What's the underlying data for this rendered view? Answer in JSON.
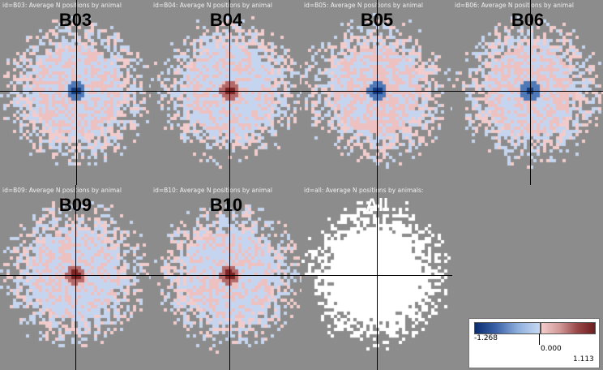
{
  "panels": [
    {
      "id": "B03",
      "caption": "id=B03: Average N positions by animal",
      "title": "B03",
      "pattern": "blue-center"
    },
    {
      "id": "B04",
      "caption": "id=B04: Average N positions by animal",
      "title": "B04",
      "pattern": "red-center"
    },
    {
      "id": "B05",
      "caption": "id=B05: Average N positions by animal",
      "title": "B05",
      "pattern": "blue-center"
    },
    {
      "id": "B06",
      "caption": "id=B06: Average N positions by animal",
      "title": "B06",
      "pattern": "blue-center"
    },
    {
      "id": "B09",
      "caption": "id=B09: Average N positions by animal",
      "title": "B09",
      "pattern": "red-center"
    },
    {
      "id": "B10",
      "caption": "id=B10: Average N positions by animal",
      "title": "B10",
      "pattern": "red-center"
    },
    {
      "id": "All",
      "caption": "id=all: Average N positions by animals:",
      "title": "All",
      "pattern": "white"
    }
  ],
  "legend": {
    "min_label": "-1.268",
    "mid_label": "0.000",
    "max_label": "1.113",
    "negative_color": "#0a2c6e",
    "positive_color": "#6b1e1e"
  }
}
